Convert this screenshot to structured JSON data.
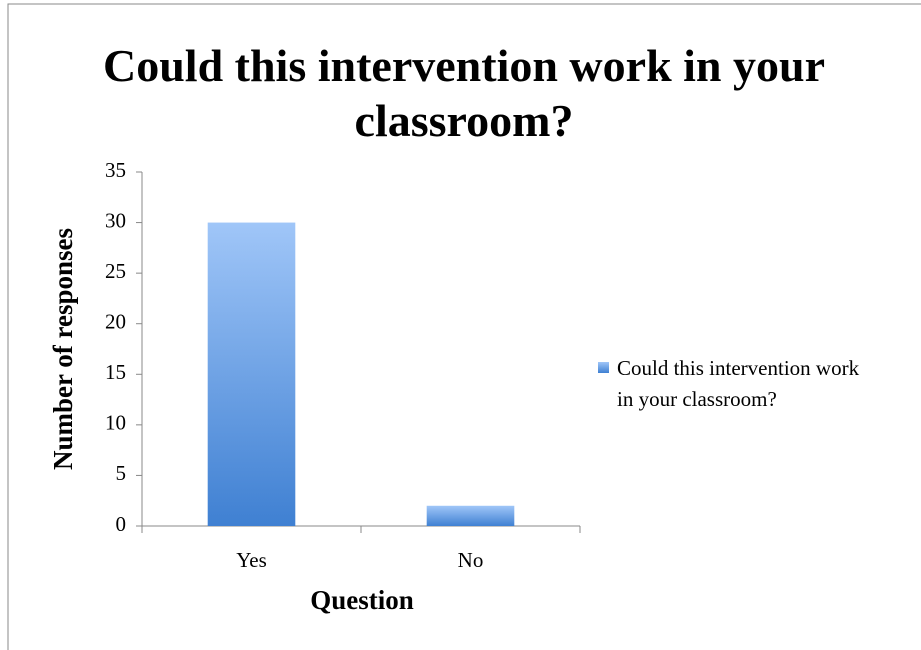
{
  "chart_data": {
    "type": "bar",
    "title": "Could this intervention work in your classroom?",
    "x_label": "Question",
    "y_label": "Number of responses",
    "categories": [
      "Yes",
      "No"
    ],
    "series": [
      {
        "name": "Could this intervention work in your classroom?",
        "color": "#5b93e0",
        "values": [
          30,
          2
        ]
      }
    ],
    "ylim": [
      0,
      35
    ],
    "yticks": [
      0,
      5,
      10,
      15,
      20,
      25,
      30,
      35
    ],
    "grid": false,
    "legend": "right"
  }
}
